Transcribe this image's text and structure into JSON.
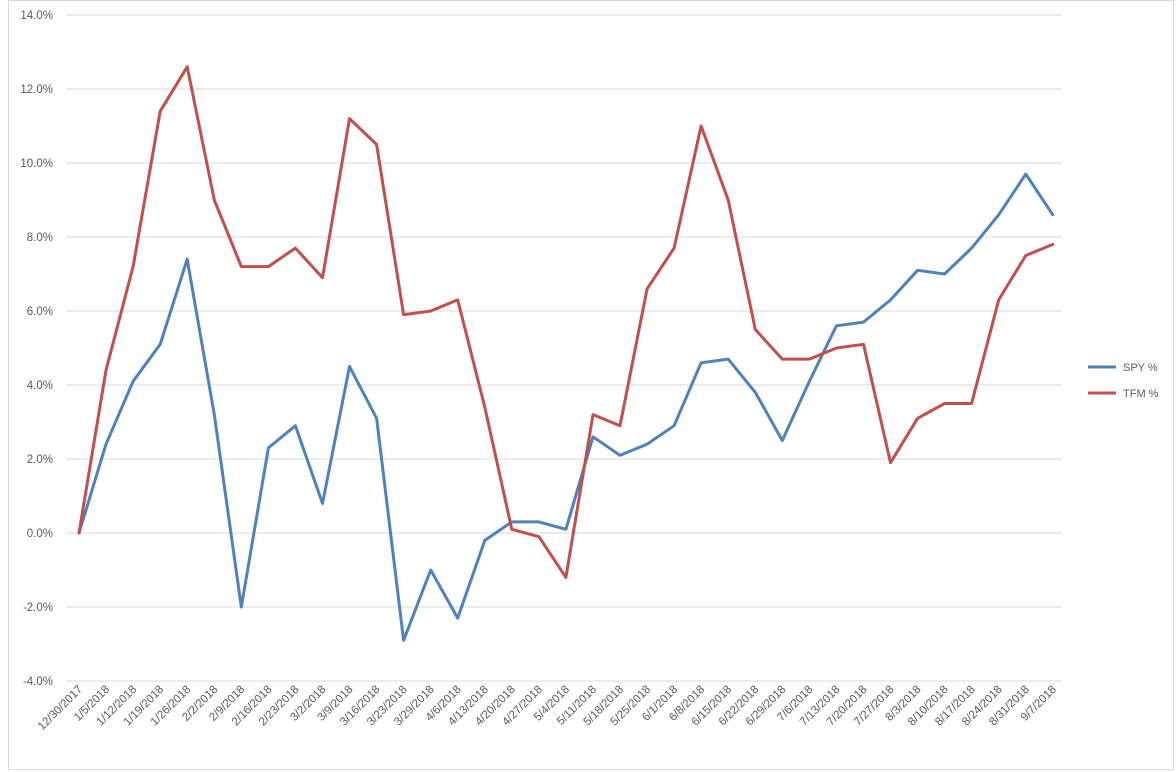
{
  "chart_data": {
    "type": "line",
    "title": "",
    "xlabel": "",
    "ylabel": "",
    "ylim": [
      -4.0,
      14.0
    ],
    "y_ticks": [
      "-4.0%",
      "-2.0%",
      "0.0%",
      "2.0%",
      "4.0%",
      "6.0%",
      "8.0%",
      "10.0%",
      "12.0%",
      "14.0%"
    ],
    "y_tick_values": [
      -4,
      -2,
      0,
      2,
      4,
      6,
      8,
      10,
      12,
      14
    ],
    "grid": true,
    "legend_position": "right",
    "categories": [
      "12/30/2017",
      "1/5/2018",
      "1/12/2018",
      "1/19/2018",
      "1/26/2018",
      "2/2/2018",
      "2/9/2018",
      "2/16/2018",
      "2/23/2018",
      "3/2/2018",
      "3/9/2018",
      "3/16/2018",
      "3/23/2018",
      "3/29/2018",
      "4/6/2018",
      "4/13/2018",
      "4/20/2018",
      "4/27/2018",
      "5/4/2018",
      "5/11/2018",
      "5/18/2018",
      "5/25/2018",
      "6/1/2018",
      "6/8/2018",
      "6/15/2018",
      "6/22/2018",
      "6/29/2018",
      "7/6/2018",
      "7/13/2018",
      "7/20/2018",
      "7/27/2018",
      "8/3/2018",
      "8/10/2018",
      "8/17/2018",
      "8/24/2018",
      "8/31/2018",
      "9/7/2018"
    ],
    "series": [
      {
        "name": "SPY %",
        "color": "#4f81bd",
        "values": [
          0.0,
          2.4,
          4.1,
          5.1,
          7.4,
          3.2,
          -2.0,
          2.3,
          2.9,
          0.8,
          4.5,
          3.1,
          -2.9,
          -1.0,
          -2.3,
          -0.2,
          0.3,
          0.3,
          0.1,
          2.6,
          2.1,
          2.4,
          2.9,
          4.6,
          4.7,
          3.8,
          2.5,
          4.1,
          5.6,
          5.7,
          6.3,
          7.1,
          7.0,
          7.7,
          8.6,
          9.7,
          8.6
        ]
      },
      {
        "name": "TFM %",
        "color": "#c0504d",
        "values": [
          0.0,
          4.4,
          7.2,
          11.4,
          12.6,
          9.0,
          7.2,
          7.2,
          7.7,
          6.9,
          11.2,
          10.5,
          5.9,
          6.0,
          6.3,
          3.4,
          0.1,
          -0.1,
          -1.2,
          3.2,
          2.9,
          6.6,
          7.7,
          11.0,
          9.0,
          5.5,
          4.7,
          4.7,
          5.0,
          5.1,
          1.9,
          3.1,
          3.5,
          3.5,
          6.3,
          7.5,
          7.8
        ]
      }
    ]
  }
}
